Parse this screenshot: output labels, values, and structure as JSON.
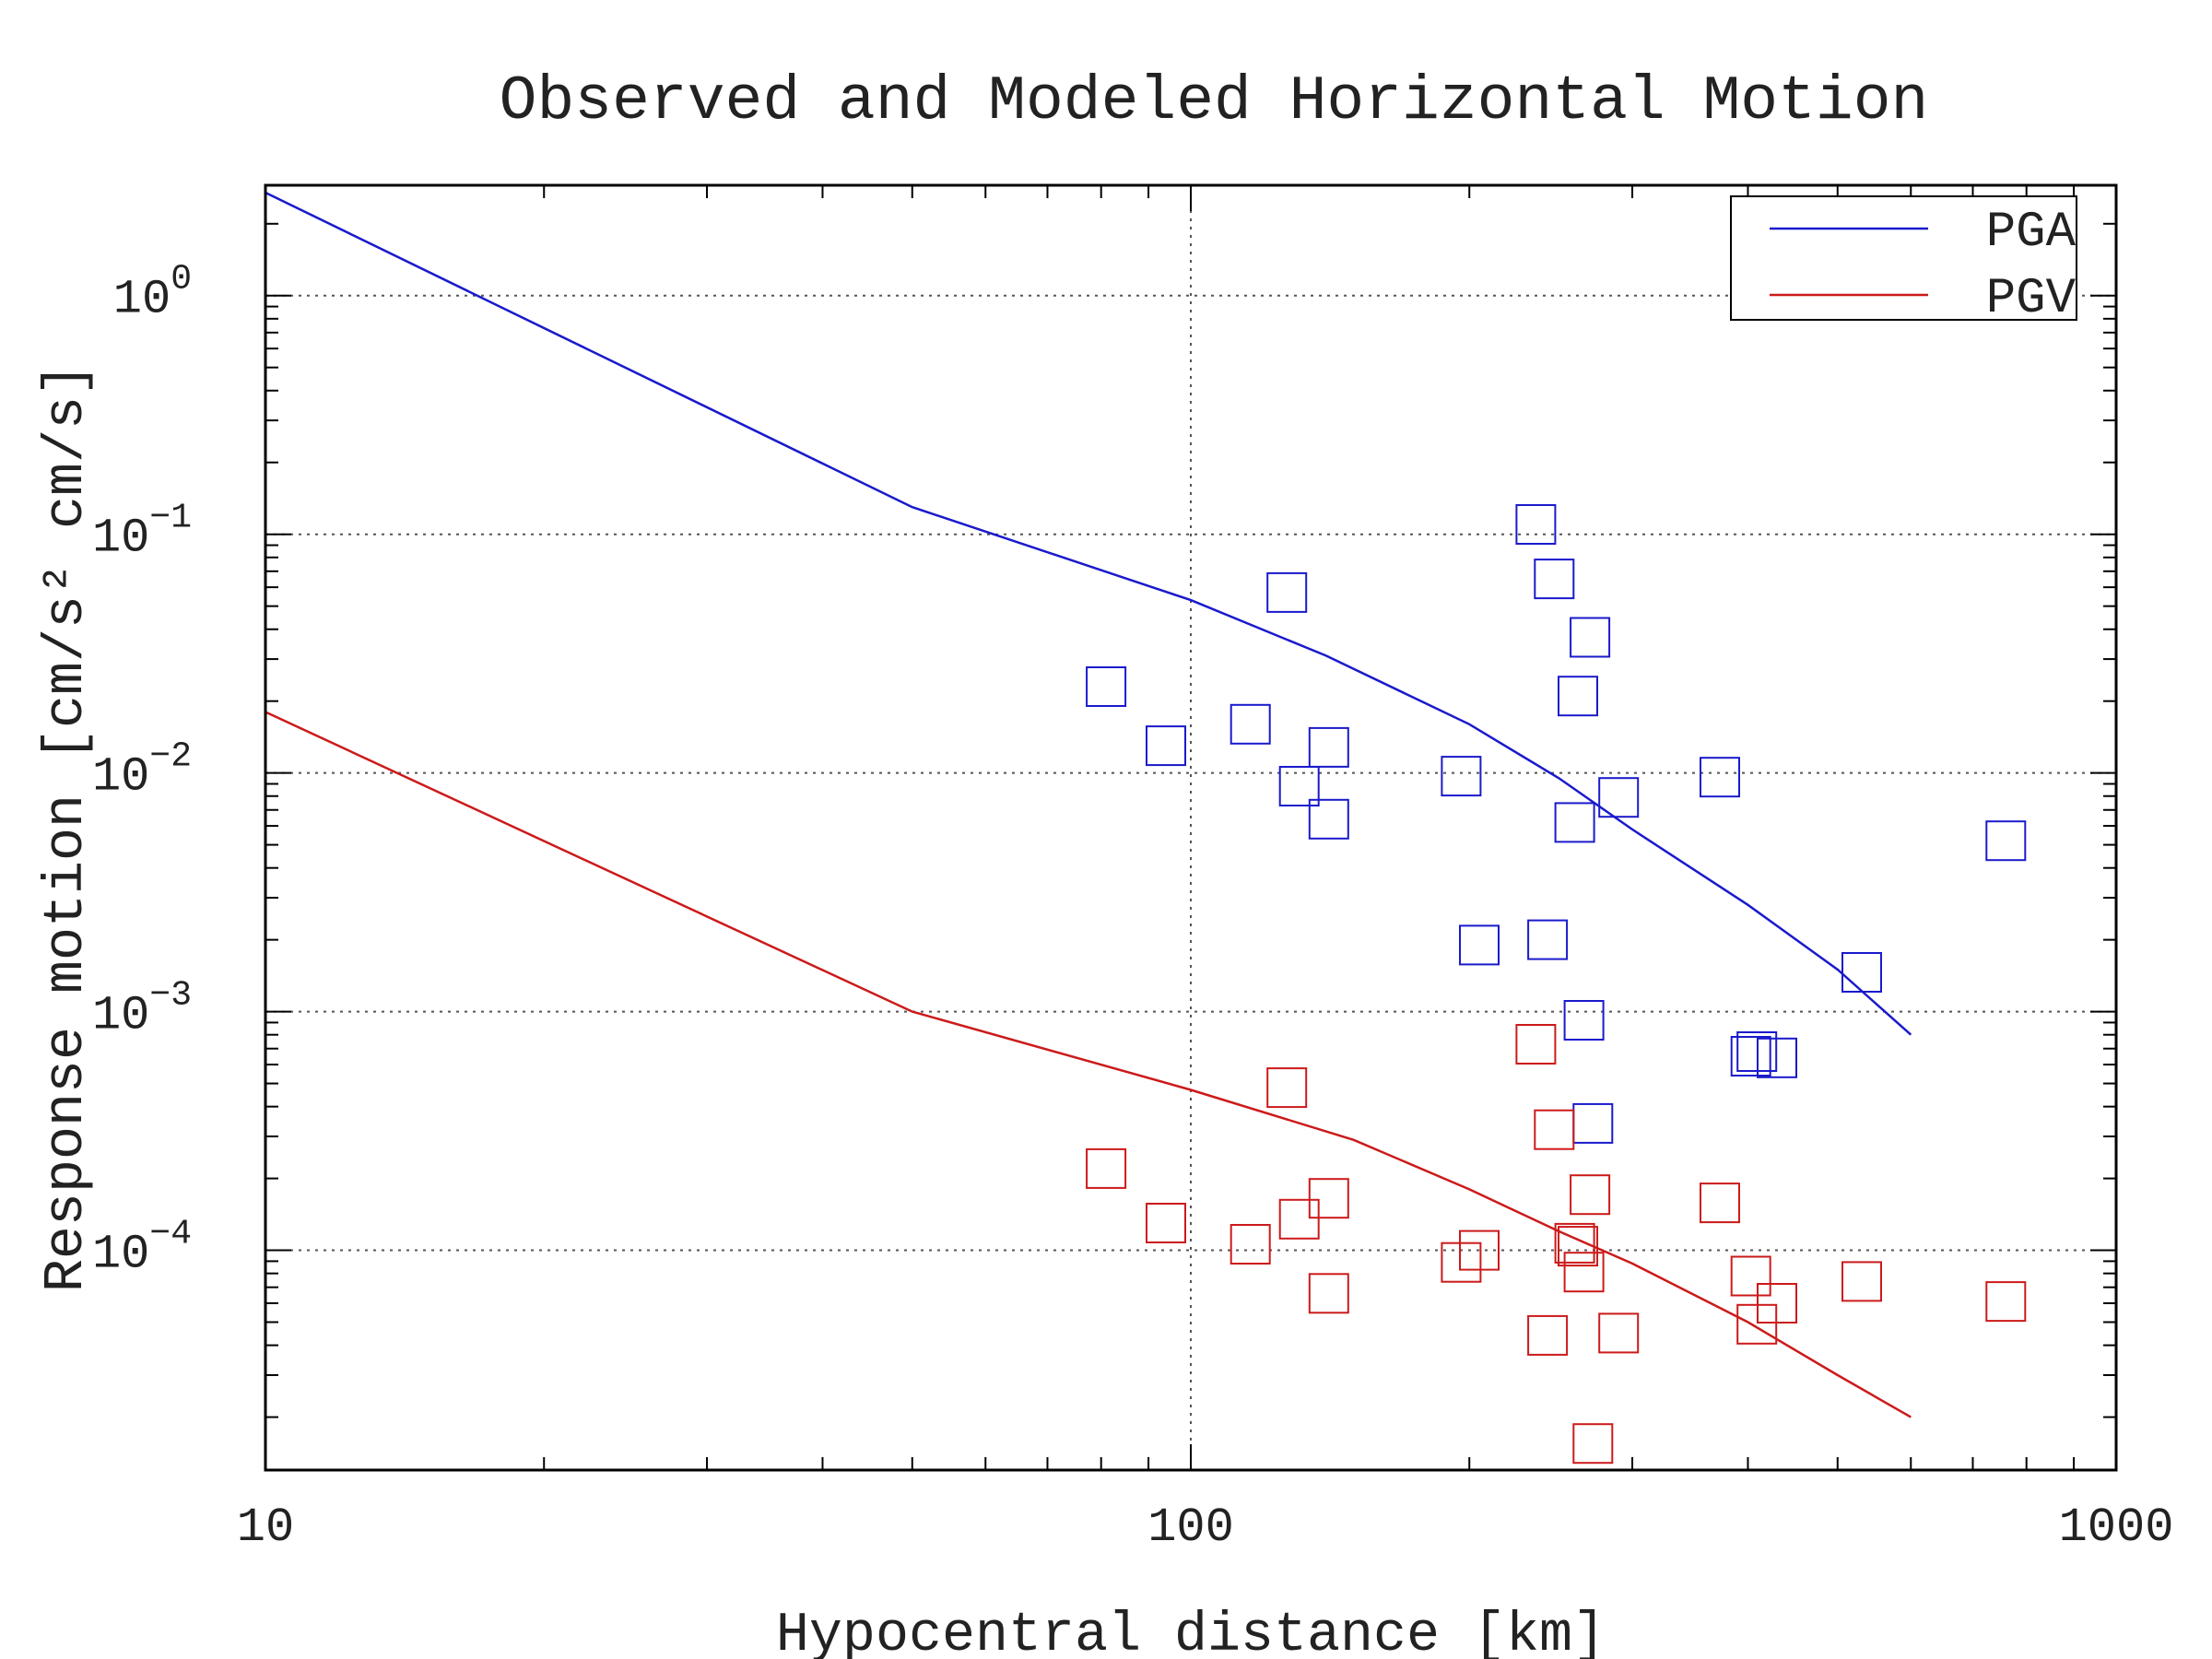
{
  "chart_data": {
    "type": "line",
    "title": "Observed and Modeled Horizontal Motion",
    "xlabel": "Hypocentral distance [km]",
    "ylabel": "Response motion [cm/s²  cm/s]",
    "xscale": "log",
    "yscale": "log",
    "xlim": [
      10,
      1000
    ],
    "ylim": [
      1.2e-05,
      2.9
    ],
    "x_ticks": [
      {
        "value": 10,
        "label": "10"
      },
      {
        "value": 100,
        "label": "100"
      },
      {
        "value": 1000,
        "label": "1000"
      }
    ],
    "y_ticks": [
      {
        "value": 1,
        "base": "10",
        "exp": "0"
      },
      {
        "value": 0.1,
        "base": "10",
        "exp": "−1"
      },
      {
        "value": 0.01,
        "base": "10",
        "exp": "−2"
      },
      {
        "value": 0.001,
        "base": "10",
        "exp": "−3"
      },
      {
        "value": 0.0001,
        "base": "10",
        "exp": "−4"
      }
    ],
    "grid": true,
    "legend_position": "top-right",
    "series": [
      {
        "name": "PGA",
        "color": "#1a1acc",
        "kind": "line",
        "points": [
          [
            10,
            2.7
          ],
          [
            50,
            0.13
          ],
          [
            100,
            0.053
          ],
          [
            140,
            0.031
          ],
          [
            200,
            0.016
          ],
          [
            250,
            0.0095
          ],
          [
            300,
            0.0058
          ],
          [
            400,
            0.0028
          ],
          [
            500,
            0.0015
          ],
          [
            600,
            0.0008
          ]
        ]
      },
      {
        "name": "PGV",
        "color": "#cc1a1a",
        "kind": "line",
        "points": [
          [
            10,
            0.018
          ],
          [
            50,
            0.001
          ],
          [
            100,
            0.00047
          ],
          [
            150,
            0.00029
          ],
          [
            200,
            0.00018
          ],
          [
            250,
            0.00012
          ],
          [
            300,
            8.8e-05
          ],
          [
            400,
            5e-05
          ],
          [
            500,
            3e-05
          ],
          [
            600,
            2e-05
          ]
        ]
      },
      {
        "color": "#1a1acc",
        "kind": "markers",
        "marker": "square",
        "points": [
          [
            81,
            0.023
          ],
          [
            94,
            0.013
          ],
          [
            116,
            0.016
          ],
          [
            127,
            0.057
          ],
          [
            131,
            0.0088
          ],
          [
            141,
            0.0128
          ],
          [
            141,
            0.0064
          ],
          [
            196,
            0.0097
          ],
          [
            205,
            0.0019
          ],
          [
            236,
            0.11
          ],
          [
            243,
            0.002
          ],
          [
            247,
            0.065
          ],
          [
            260,
            0.0062
          ],
          [
            262,
            0.021
          ],
          [
            266,
            0.00092
          ],
          [
            270,
            0.037
          ],
          [
            272,
            0.00034
          ],
          [
            290,
            0.0079
          ],
          [
            373,
            0.0096
          ],
          [
            403,
            0.00065
          ],
          [
            409,
            0.00068
          ],
          [
            430,
            0.00064
          ],
          [
            531,
            0.00146
          ],
          [
            760,
            0.0052
          ]
        ]
      },
      {
        "color": "#cc1a1a",
        "kind": "markers",
        "marker": "square",
        "points": [
          [
            81,
            0.00022
          ],
          [
            94,
            0.00013
          ],
          [
            116,
            0.000106
          ],
          [
            127,
            0.00048
          ],
          [
            131,
            0.000135
          ],
          [
            141,
            0.000165
          ],
          [
            141,
            6.6e-05
          ],
          [
            196,
            8.9e-05
          ],
          [
            205,
            0.0001
          ],
          [
            236,
            0.00073
          ],
          [
            243,
            4.4e-05
          ],
          [
            247,
            0.00032
          ],
          [
            260,
            0.000107
          ],
          [
            262,
            0.000104
          ],
          [
            266,
            8.1e-05
          ],
          [
            270,
            0.000171
          ],
          [
            272,
            1.55e-05
          ],
          [
            290,
            4.5e-05
          ],
          [
            373,
            0.000158
          ],
          [
            403,
            7.8e-05
          ],
          [
            409,
            4.9e-05
          ],
          [
            430,
            6e-05
          ],
          [
            531,
            7.4e-05
          ],
          [
            760,
            6.1e-05
          ]
        ]
      }
    ]
  }
}
